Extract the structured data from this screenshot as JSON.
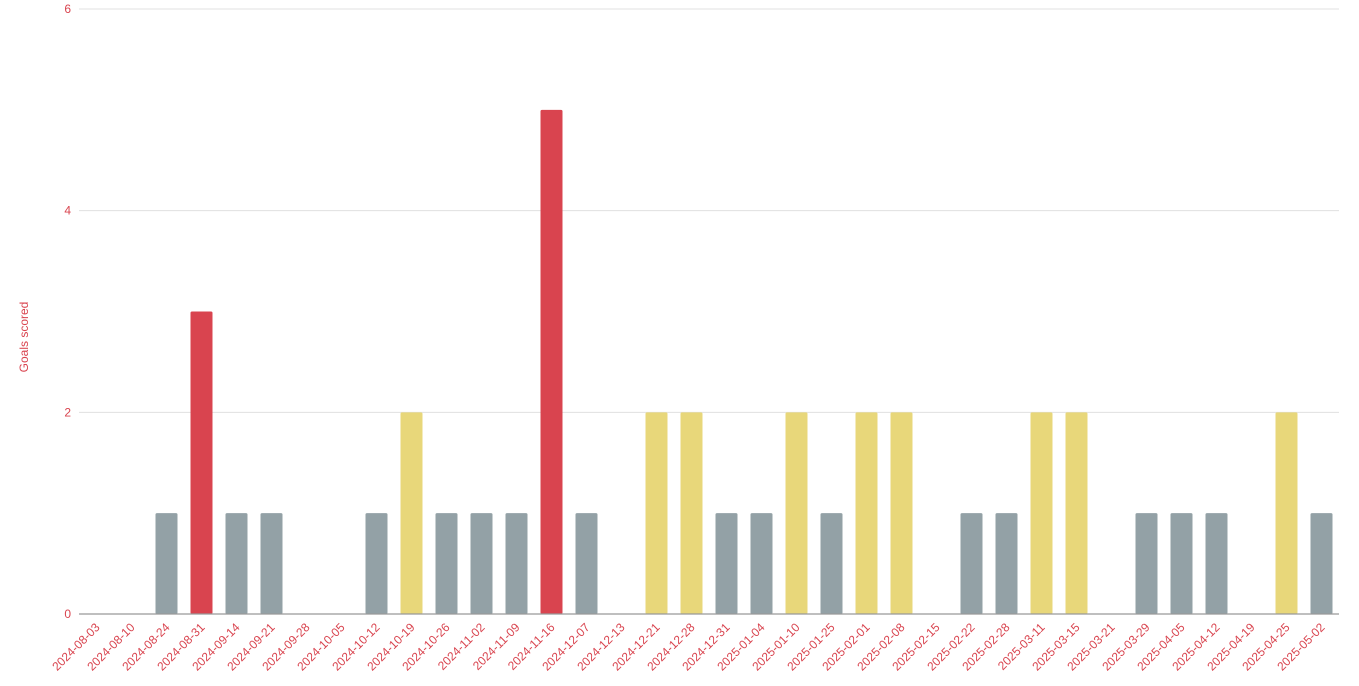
{
  "chart_data": {
    "type": "bar",
    "title": "",
    "xlabel": "",
    "ylabel": "Goals scored",
    "ylim": [
      0,
      6
    ],
    "yticks": [
      0,
      2,
      4,
      6
    ],
    "grid": true,
    "legend": null,
    "categories": [
      "2024-08-03",
      "2024-08-10",
      "2024-08-24",
      "2024-08-31",
      "2024-09-14",
      "2024-09-21",
      "2024-09-28",
      "2024-10-05",
      "2024-10-12",
      "2024-10-19",
      "2024-10-26",
      "2024-11-02",
      "2024-11-09",
      "2024-11-16",
      "2024-12-07",
      "2024-12-13",
      "2024-12-21",
      "2024-12-28",
      "2024-12-31",
      "2025-01-04",
      "2025-01-10",
      "2025-01-25",
      "2025-02-01",
      "2025-02-08",
      "2025-02-15",
      "2025-02-22",
      "2025-02-28",
      "2025-03-11",
      "2025-03-15",
      "2025-03-21",
      "2025-03-29",
      "2025-04-05",
      "2025-04-12",
      "2025-04-19",
      "2025-04-25",
      "2025-05-02"
    ],
    "values": [
      0,
      0,
      1,
      3,
      1,
      1,
      0,
      0,
      1,
      2,
      1,
      1,
      1,
      5,
      1,
      0,
      2,
      2,
      1,
      1,
      2,
      1,
      2,
      2,
      0,
      1,
      1,
      2,
      2,
      0,
      1,
      1,
      1,
      0,
      2,
      1
    ],
    "bar_colors": {
      "1": "#93a1a6",
      "2": "#e8d77a",
      "3+": "#d9444f"
    }
  },
  "colors": {
    "axis_text": "#d9444f",
    "grid": "#e0e0e0",
    "axis_line": "#999999"
  }
}
